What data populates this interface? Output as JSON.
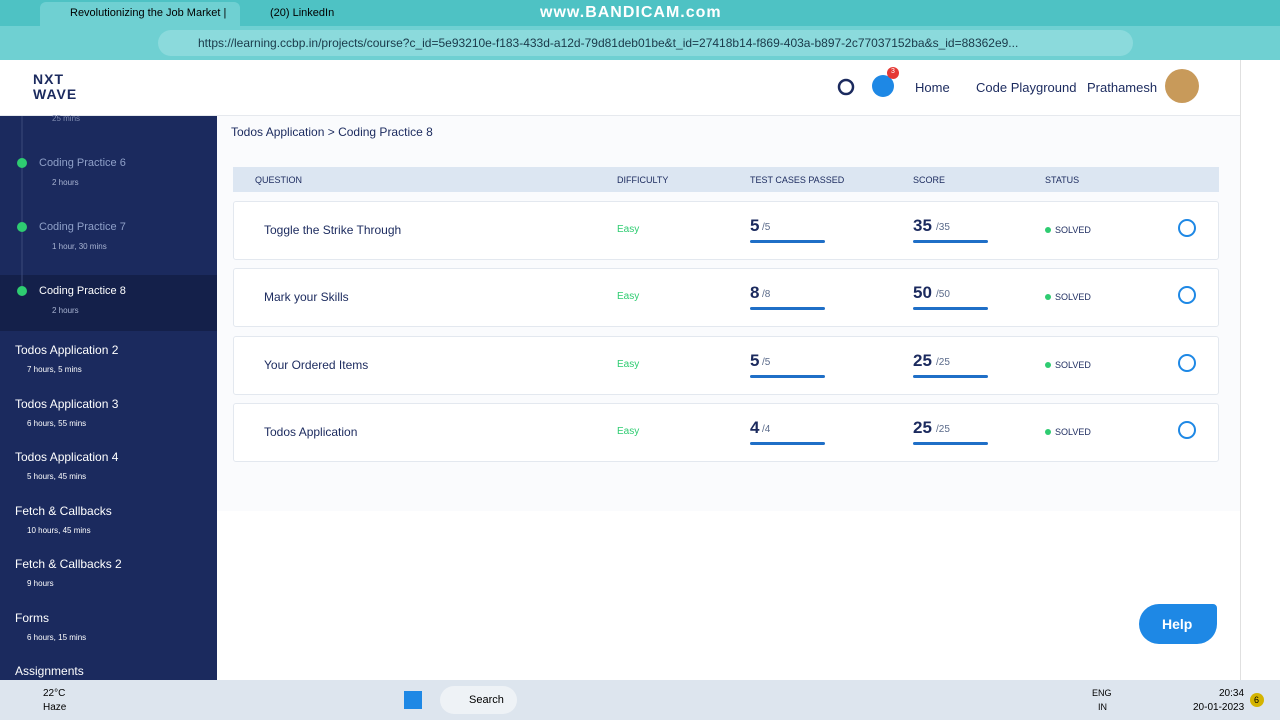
{
  "browser": {
    "tabs": [
      "Revolutionizing the Job Market |",
      "(20) LinkedIn"
    ],
    "watermark": "www.BANDICAM.com",
    "url": "https://learning.ccbp.in/projects/course?c_id=5e93210e-f183-433d-a12d-79d81deb01be&t_id=27418b14-f869-403a-b897-2c77037152ba&s_id=88362e9..."
  },
  "header": {
    "logo_top": "NXT",
    "logo_bottom": "WAVE",
    "badge": "3",
    "nav": [
      "Home",
      "Code Playground",
      "Prathamesh"
    ]
  },
  "sidebar": {
    "top_duration": "25 mins",
    "items": [
      {
        "title": "Coding Practice 6",
        "duration": "2 hours"
      },
      {
        "title": "Coding Practice 7",
        "duration": "1 hour, 30 mins"
      },
      {
        "title": "Coding Practice 8",
        "duration": "2 hours"
      }
    ],
    "modules": [
      {
        "title": "Todos Application 2",
        "duration": "7 hours, 5 mins"
      },
      {
        "title": "Todos Application 3",
        "duration": "6 hours, 55 mins"
      },
      {
        "title": "Todos Application 4",
        "duration": "5 hours, 45 mins"
      },
      {
        "title": "Fetch & Callbacks",
        "duration": "10 hours, 45 mins"
      },
      {
        "title": "Fetch & Callbacks 2",
        "duration": "9 hours"
      },
      {
        "title": "Forms",
        "duration": "6 hours, 15 mins"
      },
      {
        "title": "Assignments",
        "duration": ""
      }
    ]
  },
  "breadcrumb": "Todos Application > Coding Practice 8",
  "table": {
    "columns": [
      "QUESTION",
      "DIFFICULTY",
      "TEST CASES PASSED",
      "SCORE",
      "STATUS"
    ],
    "rows": [
      {
        "question": "Toggle the Strike Through",
        "difficulty": "Easy",
        "passed": "5",
        "passed_total": "/5",
        "score": "35",
        "score_total": "/35",
        "status": "SOLVED"
      },
      {
        "question": "Mark your Skills",
        "difficulty": "Easy",
        "passed": "8",
        "passed_total": "/8",
        "score": "50",
        "score_total": "/50",
        "status": "SOLVED"
      },
      {
        "question": "Your Ordered Items",
        "difficulty": "Easy",
        "passed": "5",
        "passed_total": "/5",
        "score": "25",
        "score_total": "/25",
        "status": "SOLVED"
      },
      {
        "question": "Todos Application",
        "difficulty": "Easy",
        "passed": "4",
        "passed_total": "/4",
        "score": "25",
        "score_total": "/25",
        "status": "SOLVED"
      }
    ]
  },
  "help": "Help",
  "taskbar": {
    "temp": "22°C",
    "weather": "Haze",
    "search": "Search",
    "lang": "ENG",
    "region": "IN",
    "time": "20:34",
    "date": "20-01-2023",
    "notifications": "6"
  }
}
